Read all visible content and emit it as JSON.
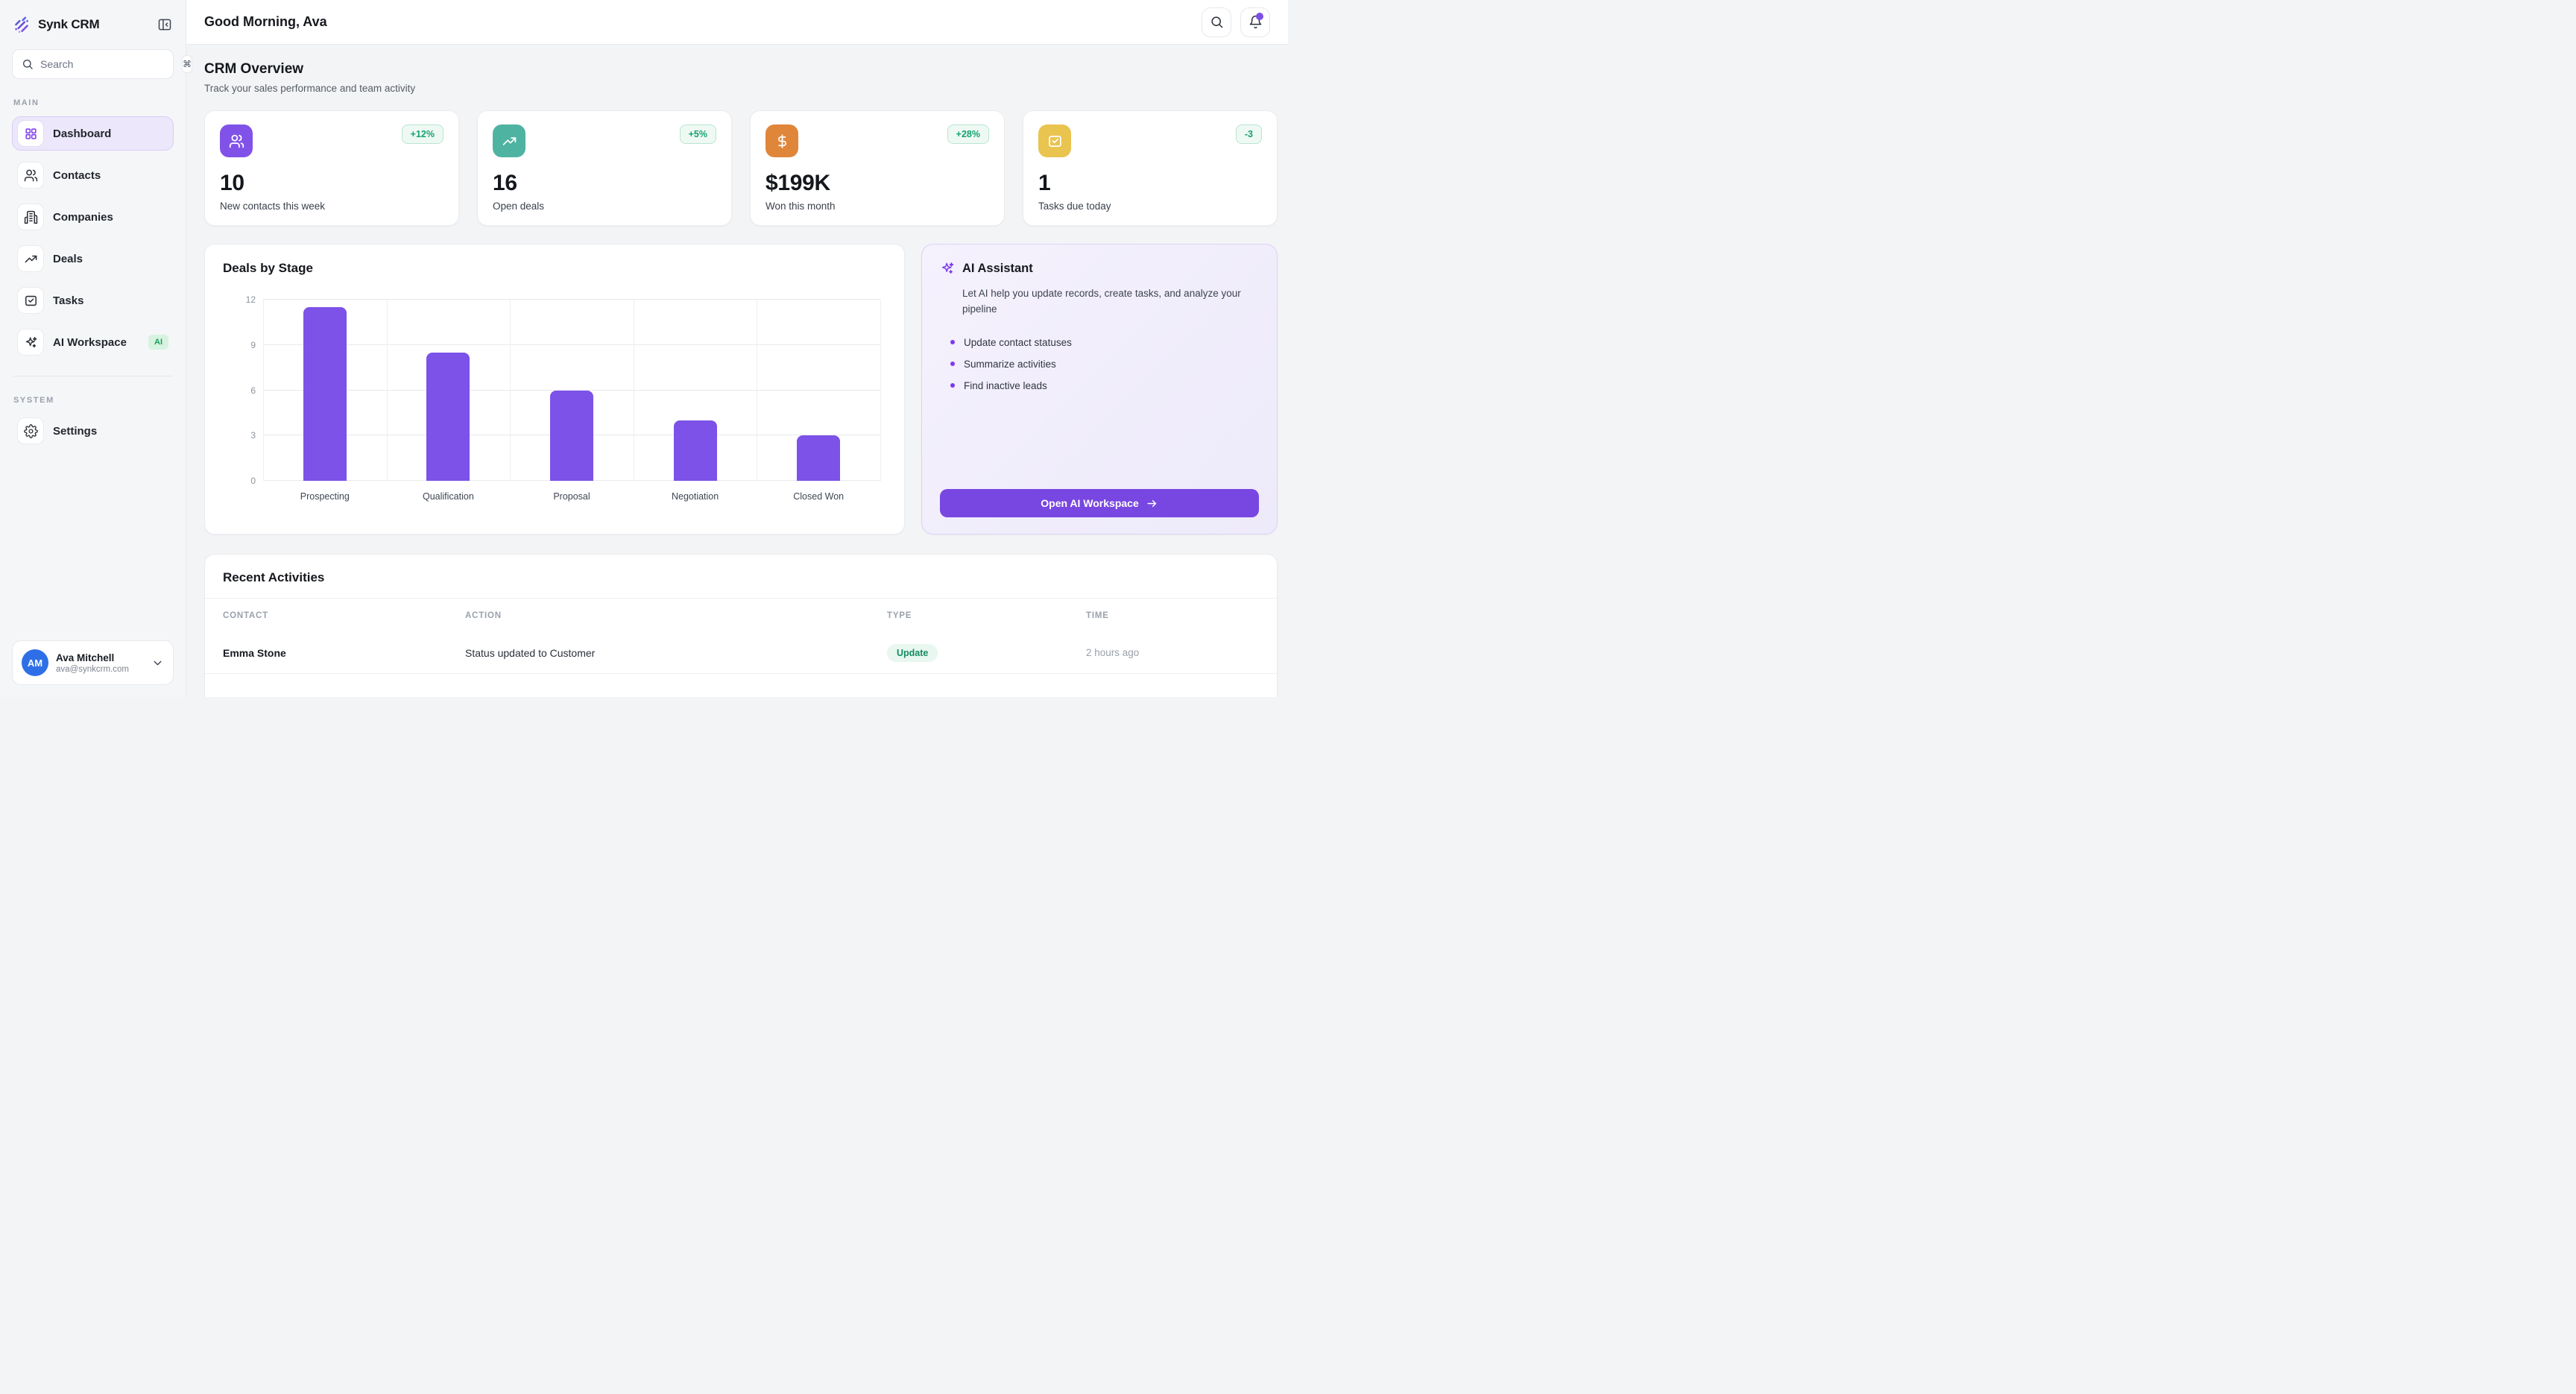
{
  "app": {
    "name": "Synk CRM"
  },
  "colors": {
    "accent": "#7c4fe4",
    "bar": "#7c52e8",
    "badge_green": "#16a173",
    "avatar_blue": "#2e6fe8",
    "stat_icon_bgs": [
      "#8152e8",
      "#4fb3a2",
      "#e0863a",
      "#e9c44f"
    ]
  },
  "sidebar": {
    "search": {
      "placeholder": "Search",
      "shortcut": "⌘"
    },
    "section_main": "MAIN",
    "section_system": "SYSTEM",
    "items_main": [
      {
        "label": "Dashboard"
      },
      {
        "label": "Contacts"
      },
      {
        "label": "Companies"
      },
      {
        "label": "Deals"
      },
      {
        "label": "Tasks"
      },
      {
        "label": "AI Workspace",
        "badge": "AI"
      }
    ],
    "items_system": [
      {
        "label": "Settings"
      }
    ],
    "user": {
      "initials": "AM",
      "name": "Ava Mitchell",
      "email": "ava@synkcrm.com"
    }
  },
  "header": {
    "greeting": "Good Morning, Ava"
  },
  "overview": {
    "title": "CRM Overview",
    "subtitle": "Track your sales performance and team activity",
    "stats": [
      {
        "value": "10",
        "label": "New contacts this week",
        "delta": "+12%"
      },
      {
        "value": "16",
        "label": "Open deals",
        "delta": "+5%"
      },
      {
        "value": "$199K",
        "label": "Won this month",
        "delta": "+28%"
      },
      {
        "value": "1",
        "label": "Tasks due today",
        "delta": "-3"
      }
    ]
  },
  "chart_data": {
    "type": "bar",
    "title": "Deals by Stage",
    "categories": [
      "Prospecting",
      "Qualification",
      "Proposal",
      "Negotiation",
      "Closed Won"
    ],
    "values": [
      11.5,
      8.5,
      6,
      4,
      3
    ],
    "xlabel": "",
    "ylabel": "",
    "ylim": [
      0,
      12
    ],
    "yticks": [
      0,
      3,
      6,
      9,
      12
    ],
    "grid": true,
    "legend": false,
    "bar_color": "#7c52e8"
  },
  "ai": {
    "title": "AI Assistant",
    "description": "Let AI help you update records, create tasks, and analyze your pipeline",
    "bullets": [
      "Update contact statuses",
      "Summarize activities",
      "Find inactive leads"
    ],
    "button": "Open AI Workspace",
    "button_arrow": "→"
  },
  "activities": {
    "title": "Recent Activities",
    "columns": [
      "CONTACT",
      "ACTION",
      "TYPE",
      "TIME"
    ],
    "rows": [
      {
        "contact": "Emma Stone",
        "action": "Status updated to Customer",
        "type": "Update",
        "time": "2 hours ago"
      }
    ]
  }
}
